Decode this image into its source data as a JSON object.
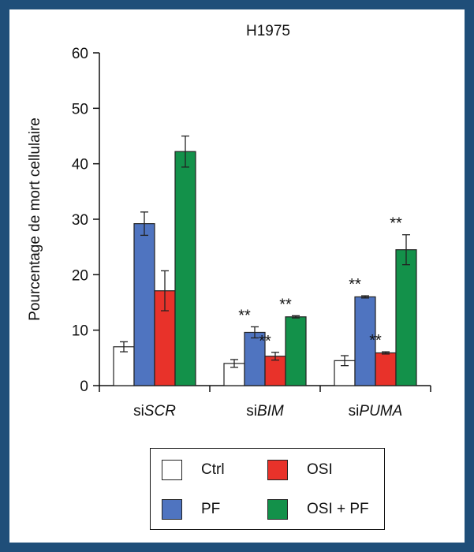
{
  "chart_data": {
    "type": "bar",
    "title": "H1975",
    "ylabel": "Pourcentage de mort cellulaire",
    "xlabel": "",
    "ylim": [
      0,
      60
    ],
    "yticks": [
      0,
      10,
      20,
      30,
      40,
      50,
      60
    ],
    "grid": false,
    "legend_position": "bottom",
    "categories": [
      {
        "prefix": "si",
        "italic": "SCR"
      },
      {
        "prefix": "si",
        "italic": "BIM"
      },
      {
        "prefix": "si",
        "italic": "PUMA"
      }
    ],
    "series": [
      {
        "name": "Ctrl",
        "color": "#ffffff",
        "values": [
          7.0,
          4.0,
          4.5
        ],
        "errors": [
          0.9,
          0.7,
          0.9
        ],
        "annotations": [
          "",
          "",
          ""
        ]
      },
      {
        "name": "PF",
        "color": "#4f74c0",
        "values": [
          29.2,
          9.6,
          16.0
        ],
        "errors": [
          2.1,
          1.0,
          0.2
        ],
        "annotations": [
          "",
          "**",
          "**"
        ]
      },
      {
        "name": "OSI",
        "color": "#e8322a",
        "values": [
          17.1,
          5.3,
          5.9
        ],
        "errors": [
          3.6,
          0.7,
          0.2
        ],
        "annotations": [
          "",
          "**",
          "**"
        ]
      },
      {
        "name": "OSI + PF",
        "color": "#13914a",
        "values": [
          42.2,
          12.4,
          24.5
        ],
        "errors": [
          2.8,
          0.2,
          2.7
        ],
        "annotations": [
          "",
          "**",
          "**"
        ]
      }
    ]
  },
  "legend": {
    "ctrl": "Ctrl",
    "osi": "OSI",
    "pf": "PF",
    "osi_pf": "OSI + PF"
  }
}
